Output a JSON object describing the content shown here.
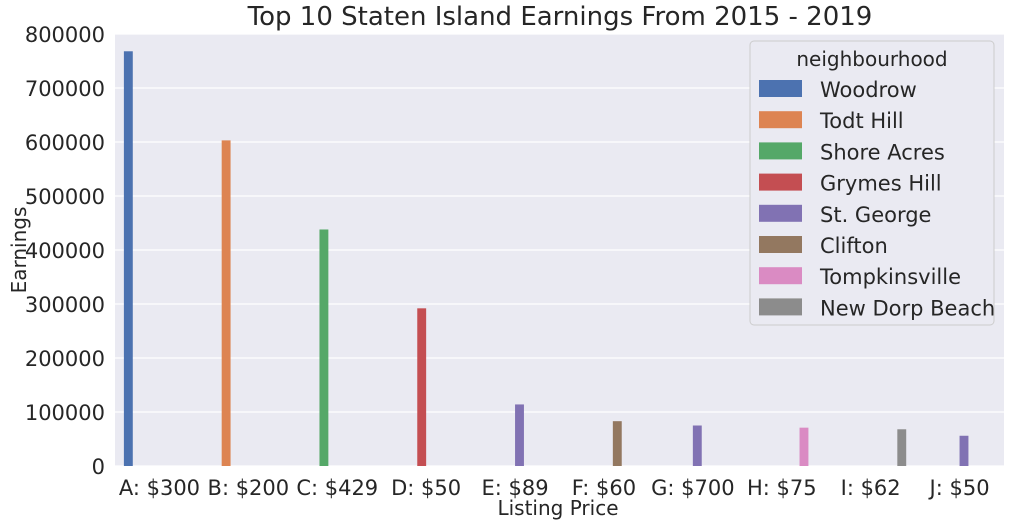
{
  "chart_data": {
    "type": "bar",
    "title": "Top 10 Staten Island Earnings From 2015 - 2019",
    "xlabel": "Listing Price",
    "ylabel": "Earnings",
    "ylim": [
      0,
      800000
    ],
    "yticks": [
      0,
      100000,
      200000,
      300000,
      400000,
      500000,
      600000,
      700000,
      800000
    ],
    "ytick_labels": [
      "0",
      "100000",
      "200000",
      "300000",
      "400000",
      "500000",
      "600000",
      "700000",
      "800000"
    ],
    "grid": true,
    "legend": {
      "title": "neighbourhood",
      "placement": "top-right",
      "entries": [
        {
          "name": "Woodrow",
          "color": "#4c72b0"
        },
        {
          "name": "Todt Hill",
          "color": "#dd8452"
        },
        {
          "name": "Shore Acres",
          "color": "#55a868"
        },
        {
          "name": "Grymes Hill",
          "color": "#c44e52"
        },
        {
          "name": "St. George",
          "color": "#8172b3"
        },
        {
          "name": "Clifton",
          "color": "#937860"
        },
        {
          "name": "Tompkinsville",
          "color": "#da8bc3"
        },
        {
          "name": "New Dorp Beach",
          "color": "#8c8c8c"
        }
      ]
    },
    "categories": [
      "A: $300",
      "B: $200",
      "C: $429",
      "D: $50",
      "E: $89",
      "F: $60",
      "G: $700",
      "H: $75",
      "I: $62",
      "J: $50"
    ],
    "bars": [
      {
        "category": "A: $300",
        "neighbourhood": "Woodrow",
        "value": 768000
      },
      {
        "category": "B: $200",
        "neighbourhood": "Todt Hill",
        "value": 603000
      },
      {
        "category": "C: $429",
        "neighbourhood": "Shore Acres",
        "value": 438000
      },
      {
        "category": "D: $50",
        "neighbourhood": "Grymes Hill",
        "value": 292000
      },
      {
        "category": "E: $89",
        "neighbourhood": "St. George",
        "value": 114000
      },
      {
        "category": "F: $60",
        "neighbourhood": "Clifton",
        "value": 83000
      },
      {
        "category": "G: $700",
        "neighbourhood": "St. George",
        "value": 75000
      },
      {
        "category": "H: $75",
        "neighbourhood": "Tompkinsville",
        "value": 71000
      },
      {
        "category": "I: $62",
        "neighbourhood": "New Dorp Beach",
        "value": 68000
      },
      {
        "category": "J: $50",
        "neighbourhood": "St. George",
        "value": 56000
      }
    ]
  }
}
